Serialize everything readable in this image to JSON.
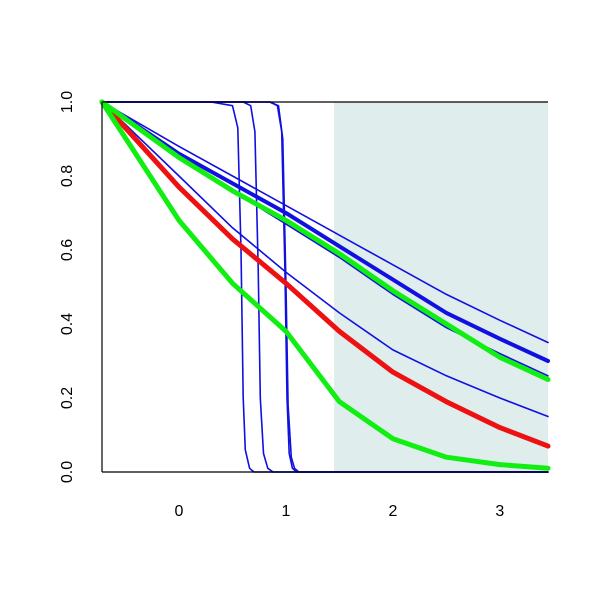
{
  "chart_data": {
    "type": "line",
    "title": "",
    "xlabel": "",
    "ylabel": "",
    "xlim": [
      -0.72,
      3.45
    ],
    "ylim": [
      0,
      1
    ],
    "grid": false,
    "legend": "none",
    "x_ticks": [
      0,
      1,
      2,
      3
    ],
    "x_tick_labels": [
      "0",
      "1",
      "2",
      "3"
    ],
    "y_ticks": [
      0,
      0.2,
      0.4,
      0.6,
      0.8,
      1
    ],
    "y_tick_labels": [
      "0.0",
      "0.2",
      "0.4",
      "0.6",
      "0.8",
      "1.0"
    ],
    "shaded_region": {
      "x_from": 1.45,
      "x_to": 3.45,
      "color": "#dfeded"
    },
    "colors": {
      "blue": "#1010e0",
      "red": "#ee1111",
      "green": "#11ee11"
    },
    "series": [
      {
        "color": "blue",
        "weight": "thin",
        "x": [
          -0.72,
          0.3,
          0.5,
          0.55,
          0.58,
          0.6,
          0.62,
          0.66,
          0.7,
          3.45
        ],
        "y": [
          1,
          1,
          0.99,
          0.93,
          0.6,
          0.2,
          0.06,
          0.01,
          0,
          0
        ]
      },
      {
        "color": "blue",
        "weight": "thin",
        "x": [
          -0.72,
          0.6,
          0.67,
          0.71,
          0.74,
          0.76,
          0.79,
          0.83,
          0.88,
          3.45
        ],
        "y": [
          1,
          1,
          0.99,
          0.92,
          0.55,
          0.2,
          0.05,
          0.01,
          0,
          0
        ]
      },
      {
        "color": "blue",
        "weight": "thin",
        "x": [
          -0.72,
          0.85,
          0.92,
          0.96,
          0.99,
          1.01,
          1.03,
          1.06,
          1.1,
          3.45
        ],
        "y": [
          1,
          1,
          0.99,
          0.92,
          0.55,
          0.2,
          0.05,
          0.01,
          0,
          0
        ]
      },
      {
        "color": "blue",
        "weight": "thin",
        "x": [
          -0.72,
          0.85,
          0.93,
          0.97,
          1.0,
          1.02,
          1.05,
          1.08,
          1.12,
          3.45
        ],
        "y": [
          1,
          1,
          0.99,
          0.9,
          0.5,
          0.18,
          0.04,
          0.01,
          0,
          0
        ]
      },
      {
        "color": "blue",
        "weight": "thin",
        "x": [
          -0.72,
          0,
          0.5,
          1,
          1.5,
          2,
          2.5,
          3,
          3.45
        ],
        "y": [
          1,
          0.88,
          0.8,
          0.72,
          0.64,
          0.56,
          0.48,
          0.41,
          0.35
        ]
      },
      {
        "color": "blue",
        "weight": "thin",
        "x": [
          -0.72,
          0,
          0.5,
          1,
          1.5,
          2,
          2.5,
          3,
          3.45
        ],
        "y": [
          1,
          0.85,
          0.76,
          0.67,
          0.58,
          0.48,
          0.39,
          0.32,
          0.26
        ]
      },
      {
        "color": "blue",
        "weight": "thick",
        "x": [
          -0.72,
          0,
          0.5,
          1,
          1.5,
          2,
          2.5,
          3,
          3.45
        ],
        "y": [
          1,
          0.86,
          0.78,
          0.7,
          0.61,
          0.52,
          0.43,
          0.36,
          0.3
        ]
      },
      {
        "color": "blue",
        "weight": "thin",
        "x": [
          -0.72,
          0,
          0.5,
          1,
          1.5,
          2,
          2.5,
          3,
          3.45
        ],
        "y": [
          1,
          0.8,
          0.66,
          0.54,
          0.43,
          0.33,
          0.26,
          0.2,
          0.15
        ]
      },
      {
        "color": "red",
        "weight": "thick",
        "x": [
          -0.72,
          0,
          0.5,
          1,
          1.5,
          2,
          2.5,
          3,
          3.45
        ],
        "y": [
          1,
          0.77,
          0.63,
          0.51,
          0.38,
          0.27,
          0.19,
          0.12,
          0.07
        ]
      },
      {
        "color": "green",
        "weight": "thick",
        "x": [
          -0.72,
          0,
          0.5,
          1,
          1.5,
          2,
          2.5,
          3,
          3.45
        ],
        "y": [
          1,
          0.85,
          0.76,
          0.68,
          0.59,
          0.49,
          0.4,
          0.31,
          0.25
        ]
      },
      {
        "color": "green",
        "weight": "thick",
        "x": [
          -0.72,
          0,
          0.5,
          1,
          1.5,
          2,
          2.5,
          3,
          3.45
        ],
        "y": [
          1,
          0.68,
          0.51,
          0.38,
          0.19,
          0.09,
          0.04,
          0.02,
          0.01
        ]
      }
    ]
  }
}
